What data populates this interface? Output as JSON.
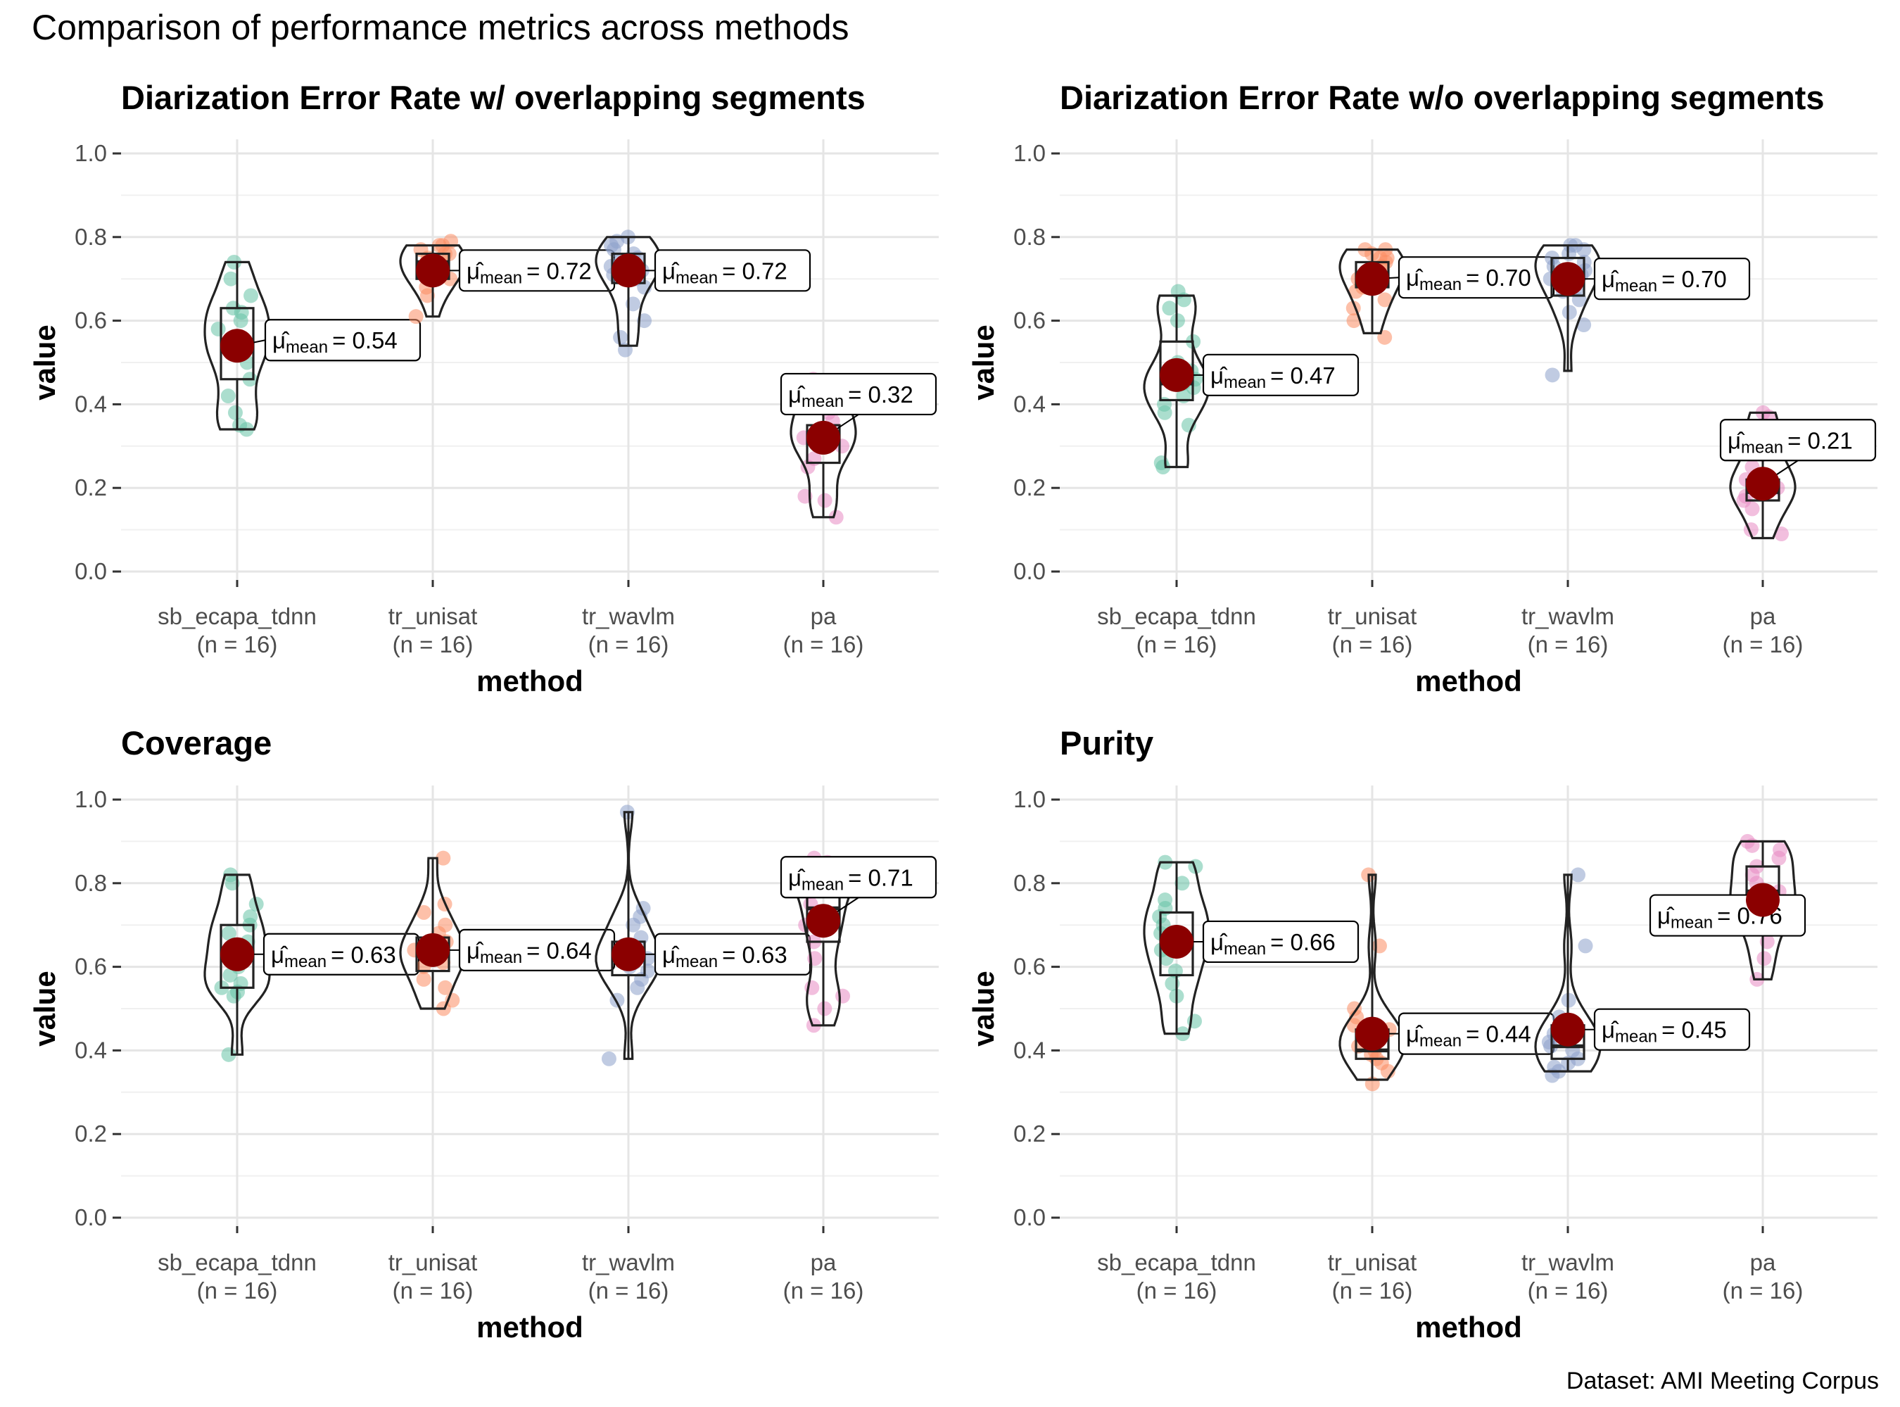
{
  "title": "Comparison of performance metrics across methods",
  "caption": "Dataset: AMI Meeting Corpus",
  "chart_data": [
    {
      "type": "violin",
      "title": "Diarization Error Rate w/ overlapping segments",
      "xlabel": "method",
      "ylabel": "value",
      "ylim": [
        0,
        1
      ],
      "yticks": [
        "0.0",
        "0.2",
        "0.4",
        "0.6",
        "0.8",
        "1.0"
      ],
      "categories": [
        "sb_ecapa_tdnn",
        "tr_unisat",
        "tr_wavlm",
        "pa"
      ],
      "n_labels": [
        "(n = 16)",
        "(n = 16)",
        "(n = 16)",
        "(n = 16)"
      ],
      "means": [
        0.54,
        0.72,
        0.72,
        0.32
      ],
      "mean_labels": [
        "= 0.54",
        "= 0.72",
        "= 0.72",
        "= 0.32"
      ],
      "series": [
        {
          "points": [
            0.34,
            0.35,
            0.38,
            0.42,
            0.46,
            0.5,
            0.52,
            0.54,
            0.55,
            0.58,
            0.6,
            0.62,
            0.63,
            0.66,
            0.7,
            0.74
          ],
          "box": [
            0.46,
            0.54,
            0.63
          ],
          "range": [
            0.34,
            0.74
          ]
        },
        {
          "points": [
            0.61,
            0.66,
            0.68,
            0.7,
            0.71,
            0.72,
            0.72,
            0.73,
            0.74,
            0.75,
            0.76,
            0.76,
            0.77,
            0.78,
            0.78,
            0.79
          ],
          "box": [
            0.7,
            0.74,
            0.76
          ],
          "range": [
            0.61,
            0.78
          ]
        },
        {
          "points": [
            0.53,
            0.56,
            0.6,
            0.64,
            0.68,
            0.7,
            0.71,
            0.72,
            0.73,
            0.74,
            0.75,
            0.76,
            0.77,
            0.78,
            0.79,
            0.8
          ],
          "box": [
            0.69,
            0.73,
            0.76
          ],
          "range": [
            0.54,
            0.8
          ]
        },
        {
          "points": [
            0.13,
            0.17,
            0.18,
            0.25,
            0.27,
            0.3,
            0.31,
            0.32,
            0.33,
            0.34,
            0.36,
            0.38,
            0.4,
            0.42,
            0.44,
            0.46
          ],
          "box": [
            0.26,
            0.33,
            0.35
          ],
          "range": [
            0.13,
            0.46
          ]
        }
      ]
    },
    {
      "type": "violin",
      "title": "Diarization Error Rate w/o overlapping segments",
      "xlabel": "method",
      "ylabel": "value",
      "ylim": [
        0,
        1
      ],
      "yticks": [
        "0.0",
        "0.2",
        "0.4",
        "0.6",
        "0.8",
        "1.0"
      ],
      "categories": [
        "sb_ecapa_tdnn",
        "tr_unisat",
        "tr_wavlm",
        "pa"
      ],
      "n_labels": [
        "(n = 16)",
        "(n = 16)",
        "(n = 16)",
        "(n = 16)"
      ],
      "means": [
        0.47,
        0.7,
        0.7,
        0.21
      ],
      "mean_labels": [
        "= 0.47",
        "= 0.70",
        "= 0.70",
        "= 0.21"
      ],
      "series": [
        {
          "points": [
            0.25,
            0.26,
            0.35,
            0.38,
            0.4,
            0.42,
            0.44,
            0.45,
            0.46,
            0.48,
            0.5,
            0.55,
            0.6,
            0.63,
            0.65,
            0.67
          ],
          "box": [
            0.41,
            0.45,
            0.55
          ],
          "range": [
            0.25,
            0.66
          ]
        },
        {
          "points": [
            0.56,
            0.6,
            0.63,
            0.65,
            0.67,
            0.68,
            0.7,
            0.71,
            0.72,
            0.73,
            0.74,
            0.75,
            0.75,
            0.76,
            0.77,
            0.77
          ],
          "box": [
            0.68,
            0.71,
            0.74
          ],
          "range": [
            0.57,
            0.77
          ]
        },
        {
          "points": [
            0.47,
            0.59,
            0.62,
            0.65,
            0.67,
            0.68,
            0.7,
            0.71,
            0.72,
            0.73,
            0.74,
            0.75,
            0.76,
            0.77,
            0.78,
            0.78
          ],
          "box": [
            0.66,
            0.71,
            0.75
          ],
          "range": [
            0.48,
            0.78
          ]
        },
        {
          "points": [
            0.09,
            0.1,
            0.15,
            0.17,
            0.18,
            0.19,
            0.2,
            0.21,
            0.22,
            0.23,
            0.25,
            0.28,
            0.31,
            0.34,
            0.37,
            0.38
          ],
          "box": [
            0.17,
            0.19,
            0.22
          ],
          "range": [
            0.08,
            0.38
          ]
        }
      ]
    },
    {
      "type": "violin",
      "title": "Coverage",
      "xlabel": "method",
      "ylabel": "value",
      "ylim": [
        0,
        1
      ],
      "yticks": [
        "0.0",
        "0.2",
        "0.4",
        "0.6",
        "0.8",
        "1.0"
      ],
      "categories": [
        "sb_ecapa_tdnn",
        "tr_unisat",
        "tr_wavlm",
        "pa"
      ],
      "n_labels": [
        "(n = 16)",
        "(n = 16)",
        "(n = 16)",
        "(n = 16)"
      ],
      "means": [
        0.63,
        0.64,
        0.63,
        0.71
      ],
      "mean_labels": [
        "= 0.63",
        "= 0.64",
        "= 0.63",
        "= 0.71"
      ],
      "series": [
        {
          "points": [
            0.39,
            0.53,
            0.54,
            0.55,
            0.56,
            0.58,
            0.6,
            0.62,
            0.64,
            0.66,
            0.68,
            0.7,
            0.72,
            0.75,
            0.8,
            0.82
          ],
          "box": [
            0.55,
            0.64,
            0.7
          ],
          "range": [
            0.39,
            0.82
          ]
        },
        {
          "points": [
            0.5,
            0.52,
            0.55,
            0.57,
            0.6,
            0.61,
            0.62,
            0.63,
            0.64,
            0.65,
            0.66,
            0.68,
            0.7,
            0.73,
            0.75,
            0.86
          ],
          "box": [
            0.59,
            0.63,
            0.67
          ],
          "range": [
            0.5,
            0.86
          ]
        },
        {
          "points": [
            0.38,
            0.52,
            0.55,
            0.57,
            0.59,
            0.6,
            0.61,
            0.62,
            0.63,
            0.64,
            0.65,
            0.67,
            0.7,
            0.72,
            0.74,
            0.97
          ],
          "box": [
            0.58,
            0.62,
            0.66
          ],
          "range": [
            0.38,
            0.97
          ]
        },
        {
          "points": [
            0.46,
            0.5,
            0.53,
            0.55,
            0.62,
            0.66,
            0.7,
            0.72,
            0.75,
            0.78,
            0.8,
            0.82,
            0.84,
            0.84,
            0.85,
            0.86
          ],
          "box": [
            0.66,
            0.74,
            0.84
          ],
          "range": [
            0.46,
            0.86
          ]
        }
      ]
    },
    {
      "type": "violin",
      "title": "Purity",
      "xlabel": "method",
      "ylabel": "value",
      "ylim": [
        0,
        1
      ],
      "yticks": [
        "0.0",
        "0.2",
        "0.4",
        "0.6",
        "0.8",
        "1.0"
      ],
      "categories": [
        "sb_ecapa_tdnn",
        "tr_unisat",
        "tr_wavlm",
        "pa"
      ],
      "n_labels": [
        "(n = 16)",
        "(n = 16)",
        "(n = 16)",
        "(n = 16)"
      ],
      "means": [
        0.66,
        0.44,
        0.45,
        0.76
      ],
      "mean_labels": [
        "= 0.66",
        "= 0.44",
        "= 0.45",
        "= 0.76"
      ],
      "series": [
        {
          "points": [
            0.44,
            0.47,
            0.53,
            0.56,
            0.59,
            0.62,
            0.64,
            0.66,
            0.68,
            0.7,
            0.72,
            0.74,
            0.76,
            0.8,
            0.84,
            0.85
          ],
          "box": [
            0.58,
            0.67,
            0.73
          ],
          "range": [
            0.44,
            0.85
          ]
        },
        {
          "points": [
            0.32,
            0.35,
            0.37,
            0.38,
            0.39,
            0.4,
            0.41,
            0.42,
            0.43,
            0.44,
            0.45,
            0.46,
            0.48,
            0.5,
            0.65,
            0.82
          ],
          "box": [
            0.38,
            0.4,
            0.45
          ],
          "range": [
            0.33,
            0.82
          ]
        },
        {
          "points": [
            0.34,
            0.35,
            0.36,
            0.37,
            0.38,
            0.4,
            0.41,
            0.42,
            0.43,
            0.44,
            0.45,
            0.46,
            0.48,
            0.52,
            0.65,
            0.82
          ],
          "box": [
            0.38,
            0.41,
            0.46
          ],
          "range": [
            0.35,
            0.82
          ]
        },
        {
          "points": [
            0.57,
            0.62,
            0.66,
            0.7,
            0.72,
            0.74,
            0.75,
            0.76,
            0.78,
            0.8,
            0.82,
            0.84,
            0.86,
            0.88,
            0.89,
            0.9
          ],
          "box": [
            0.7,
            0.78,
            0.84
          ],
          "range": [
            0.57,
            0.9
          ]
        }
      ]
    }
  ],
  "colors": {
    "series": [
      "#66c2a5",
      "#fc8d62",
      "#8da0cb",
      "#e78ac3"
    ],
    "mean_dot": "#8b0000"
  },
  "mean_symbol": "μ̂",
  "mean_subscript": "mean"
}
